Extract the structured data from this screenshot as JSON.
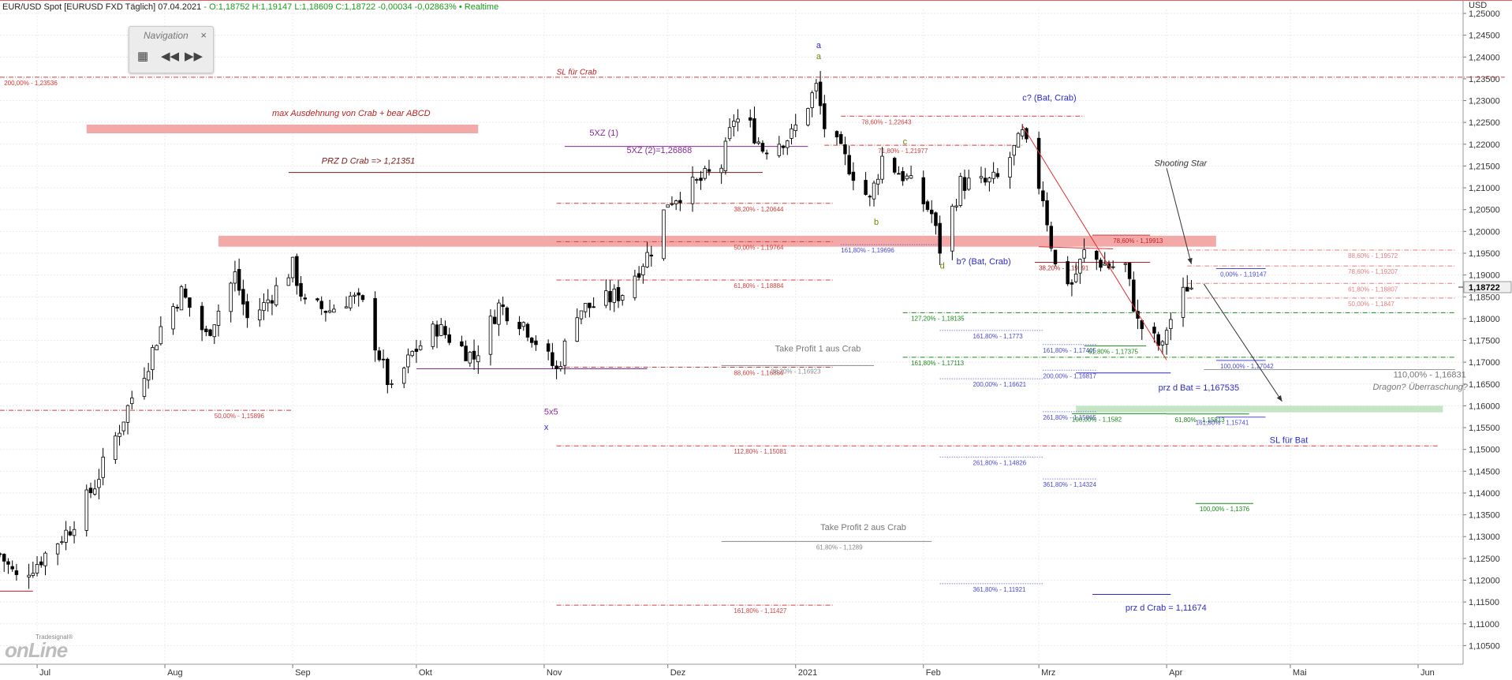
{
  "header": {
    "symbol": "EUR/USD Spot [EURUSD FXD Täglich] 07.04.2021",
    "ohlc": "- O:1,18752 H:1,19147 L:1,18609 C:1,18722 -0,00034 -0,02863% • Realtime"
  },
  "navigation": {
    "title": "Navigation",
    "close_glyph": "×",
    "grid_glyph": "▦",
    "back_glyph": "◀◀",
    "forward_glyph": "▶▶"
  },
  "logo": {
    "small": "Tradesignal®",
    "big": "onLine"
  },
  "currency_label": "USD",
  "current_price_label": "1,18722",
  "colors": {
    "up": "#ffffff",
    "down": "#000000",
    "red": "#e02020",
    "blue": "#2a2ad0",
    "green": "#1a8a1a",
    "purple": "#8a2a9a",
    "gray": "#777777",
    "band_red": "#f3a0a0",
    "band_green": "#bfe3bf"
  },
  "chart_data": {
    "type": "candlestick",
    "ylim": [
      1.102,
      1.25
    ],
    "xlim": [
      "2021-06-22",
      "2021-06-10"
    ],
    "y_axis_side": "right",
    "grid": true,
    "y_ticks": [
      "1,25000",
      "1,24500",
      "1,24000",
      "1,23500",
      "1,23000",
      "1,22500",
      "1,22000",
      "1,21500",
      "1,21000",
      "1,20500",
      "1,20000",
      "1,19500",
      "1,19000",
      "1,18500",
      "1,18000",
      "1,17500",
      "1,17000",
      "1,16500",
      "1,16000",
      "1,15500",
      "1,15000",
      "1,14500",
      "1,14000",
      "1,13500",
      "1,13000",
      "1,12500",
      "1,12000",
      "1,11500",
      "1,11000",
      "1,10500"
    ],
    "y_tick_values": [
      1.25,
      1.245,
      1.24,
      1.235,
      1.23,
      1.225,
      1.22,
      1.215,
      1.21,
      1.205,
      1.2,
      1.195,
      1.19,
      1.185,
      1.18,
      1.175,
      1.17,
      1.165,
      1.16,
      1.155,
      1.15,
      1.145,
      1.14,
      1.135,
      1.13,
      1.125,
      1.12,
      1.115,
      1.11,
      1.105
    ],
    "x_ticks": [
      {
        "label": "Jul",
        "date": "2020-07-01"
      },
      {
        "label": "Aug",
        "date": "2020-08-01"
      },
      {
        "label": "Sep",
        "date": "2020-09-01"
      },
      {
        "label": "Okt",
        "date": "2020-10-01"
      },
      {
        "label": "Nov",
        "date": "2020-11-01"
      },
      {
        "label": "Dez",
        "date": "2020-12-01"
      },
      {
        "label": "2021",
        "date": "2021-01-01"
      },
      {
        "label": "Feb",
        "date": "2021-02-01"
      },
      {
        "label": "Mrz",
        "date": "2021-03-01"
      },
      {
        "label": "Apr",
        "date": "2021-04-01"
      },
      {
        "label": "Mai",
        "date": "2021-05-01"
      },
      {
        "label": "Jun",
        "date": "2021-06-01"
      }
    ],
    "anchors": [
      [
        "2020-06-22",
        1.126
      ],
      [
        "2020-06-26",
        1.1205
      ],
      [
        "2020-07-01",
        1.124
      ],
      [
        "2020-07-09",
        1.132
      ],
      [
        "2020-07-15",
        1.142
      ],
      [
        "2020-07-21",
        1.155
      ],
      [
        "2020-07-24",
        1.162
      ],
      [
        "2020-07-28",
        1.17
      ],
      [
        "2020-07-31",
        1.178
      ],
      [
        "2020-08-05",
        1.186
      ],
      [
        "2020-08-11",
        1.176
      ],
      [
        "2020-08-18",
        1.19
      ],
      [
        "2020-08-21",
        1.18
      ],
      [
        "2020-08-25",
        1.183
      ],
      [
        "2020-09-01",
        1.192
      ],
      [
        "2020-09-04",
        1.183
      ],
      [
        "2020-09-10",
        1.182
      ],
      [
        "2020-09-15",
        1.185
      ],
      [
        "2020-09-18",
        1.183
      ],
      [
        "2020-09-25",
        1.163
      ],
      [
        "2020-09-30",
        1.172
      ],
      [
        "2020-10-06",
        1.178
      ],
      [
        "2020-10-15",
        1.171
      ],
      [
        "2020-10-21",
        1.183
      ],
      [
        "2020-10-27",
        1.179
      ],
      [
        "2020-11-04",
        1.168
      ],
      [
        "2020-11-09",
        1.182
      ],
      [
        "2020-11-13",
        1.183
      ],
      [
        "2020-11-20",
        1.186
      ],
      [
        "2020-11-27",
        1.196
      ],
      [
        "2020-12-01",
        1.207
      ],
      [
        "2020-12-08",
        1.211
      ],
      [
        "2020-12-14",
        1.215
      ],
      [
        "2020-12-17",
        1.226
      ],
      [
        "2020-12-21",
        1.224
      ],
      [
        "2020-12-24",
        1.219
      ],
      [
        "2020-12-31",
        1.222
      ],
      [
        "2021-01-06",
        1.233
      ],
      [
        "2021-01-08",
        1.224
      ],
      [
        "2021-01-14",
        1.215
      ],
      [
        "2021-01-19",
        1.207
      ],
      [
        "2021-01-22",
        1.217
      ],
      [
        "2021-01-28",
        1.212
      ],
      [
        "2021-02-03",
        1.204
      ],
      [
        "2021-02-05",
        1.196
      ],
      [
        "2021-02-10",
        1.211
      ],
      [
        "2021-02-16",
        1.211
      ],
      [
        "2021-02-19",
        1.212
      ],
      [
        "2021-02-25",
        1.222
      ],
      [
        "2021-03-02",
        1.208
      ],
      [
        "2021-03-05",
        1.192
      ],
      [
        "2021-03-09",
        1.188
      ],
      [
        "2021-03-12",
        1.195
      ],
      [
        "2021-03-18",
        1.192
      ],
      [
        "2021-03-22",
        1.192
      ],
      [
        "2021-03-25",
        1.179
      ],
      [
        "2021-03-31",
        1.173
      ],
      [
        "2021-04-01",
        1.178
      ],
      [
        "2021-04-06",
        1.1875
      ],
      [
        "2021-04-07",
        1.1872
      ]
    ],
    "levels": [
      {
        "label": "200,00% - 1,23536",
        "price": 1.23536,
        "x1": "2020-06-22",
        "x2": "2021-06-22",
        "color": "#d04040",
        "style": "dashdot",
        "label_at": "2020-06-23",
        "label_color": "#e03030"
      },
      {
        "label": "",
        "price": 1.23536,
        "x1": "2020-06-22",
        "x2": "2021-06-22",
        "color": "#d04040",
        "style": "none",
        "label_at": "2020-06-23"
      },
      {
        "label": "SL für Crab",
        "price": 1.2365,
        "color": "#c02020",
        "style": "text",
        "label_at": "2020-11-04"
      },
      {
        "label": "78,60% - 1,22643",
        "price": 1.22643,
        "x1": "2021-01-12",
        "x2": "2021-03-12",
        "color": "#d04040",
        "style": "dashdot",
        "label_at": "2021-01-17"
      },
      {
        "label": "71,80% - 1,21977",
        "price": 1.21977,
        "x1": "2021-01-08",
        "x2": "2021-02-25",
        "color": "#d04040",
        "style": "dashdot",
        "label_at": "2021-01-21"
      },
      {
        "label": "38,20% - 1,20644",
        "price": 1.20644,
        "x1": "2020-11-04",
        "x2": "2021-01-10",
        "color": "#d04040",
        "style": "dashdot",
        "label_at": "2020-12-17"
      },
      {
        "label": "50,00% - 1,19764",
        "price": 1.19764,
        "x1": "2020-11-04",
        "x2": "2021-01-10",
        "color": "#d04040",
        "style": "dashdot",
        "label_at": "2020-12-17"
      },
      {
        "label": "61,80% - 1,18884",
        "price": 1.18884,
        "x1": "2020-11-04",
        "x2": "2021-01-10",
        "color": "#d04040",
        "style": "dashdot",
        "label_at": "2020-12-17"
      },
      {
        "label": "88,60% - 1,16886",
        "price": 1.16886,
        "x1": "2020-11-04",
        "x2": "2021-01-10",
        "color": "#d04040",
        "style": "dashdot",
        "label_at": "2020-12-17"
      },
      {
        "label": "112,80% - 1,15081",
        "price": 1.15081,
        "x1": "2020-11-04",
        "x2": "2021-06-06",
        "color": "#d04040",
        "style": "dashdot",
        "label_at": "2020-12-17"
      },
      {
        "label": "161,80% - 1,11427",
        "price": 1.11427,
        "x1": "2020-11-04",
        "x2": "2021-01-10",
        "color": "#d04040",
        "style": "dashdot",
        "label_at": "2020-12-17"
      },
      {
        "label": "50,00% - 1,15896",
        "price": 1.15896,
        "x1": "2020-06-22",
        "x2": "2020-09-01",
        "color": "#d04040",
        "style": "dashdot",
        "label_at": "2020-08-13"
      },
      {
        "label": "161,80% - 1,19696",
        "price": 1.19696,
        "x1": "2021-01-12",
        "x2": "2021-02-05",
        "color": "#4a4ad0",
        "style": "dotted",
        "label_at": "2021-01-12"
      },
      {
        "label": "127,20% - 1,18135",
        "price": 1.18135,
        "x1": "2021-01-27",
        "x2": "2021-06-10",
        "color": "#1a8a1a",
        "style": "dashdot",
        "label_at": "2021-01-29"
      },
      {
        "label": "161,80% - 1,17113",
        "price": 1.17113,
        "x1": "2021-01-27",
        "x2": "2021-06-10",
        "color": "#1a8a1a",
        "style": "dashdot",
        "label_at": "2021-01-29"
      },
      {
        "label": "161,80% - 1,1773",
        "price": 1.1773,
        "x1": "2021-02-05",
        "x2": "2021-03-02",
        "color": "#4a4ad0",
        "style": "dotted",
        "label_at": "2021-02-13"
      },
      {
        "label": "200,00% - 1,16621",
        "price": 1.16621,
        "x1": "2021-02-05",
        "x2": "2021-03-02",
        "color": "#4a4ad0",
        "style": "dotted",
        "label_at": "2021-02-13"
      },
      {
        "label": "261,80% - 1,14826",
        "price": 1.14826,
        "x1": "2021-02-05",
        "x2": "2021-03-02",
        "color": "#4a4ad0",
        "style": "dotted",
        "label_at": "2021-02-13"
      },
      {
        "label": "361,80% - 1,11921",
        "price": 1.11921,
        "x1": "2021-02-05",
        "x2": "2021-03-02",
        "color": "#4a4ad0",
        "style": "dotted",
        "label_at": "2021-02-13"
      },
      {
        "label": "161,80% - 1,17405",
        "price": 1.17405,
        "x1": "2021-03-02",
        "x2": "2021-03-15",
        "color": "#4a4ad0",
        "style": "dotted",
        "label_at": "2021-03-02"
      },
      {
        "label": "200,00% - 1,16817",
        "price": 1.16817,
        "x1": "2021-03-02",
        "x2": "2021-03-15",
        "color": "#4a4ad0",
        "style": "dotted",
        "label_at": "2021-03-02"
      },
      {
        "label": "261,80% - 1,15865",
        "price": 1.15865,
        "x1": "2021-03-02",
        "x2": "2021-03-15",
        "color": "#4a4ad0",
        "style": "dotted",
        "label_at": "2021-03-02"
      },
      {
        "label": "361,80% - 1,14324",
        "price": 1.14324,
        "x1": "2021-03-02",
        "x2": "2021-03-15",
        "color": "#4a4ad0",
        "style": "dotted",
        "label_at": "2021-03-02"
      },
      {
        "label": "61,80% - 1,17375",
        "price": 1.17375,
        "x1": "2021-03-12",
        "x2": "2021-03-27",
        "color": "#1a8a1a",
        "style": "solid",
        "label_at": "2021-03-13"
      },
      {
        "label": "100,00% - 1,1582",
        "price": 1.1582,
        "x1": "2021-03-09",
        "x2": "2021-04-01",
        "color": "#1a8a1a",
        "style": "solid",
        "label_at": "2021-03-09"
      },
      {
        "label": "61,80% - 1,15813",
        "price": 1.15813,
        "x1": "2021-04-01",
        "x2": "2021-04-21",
        "color": "#1a8a1a",
        "style": "solid",
        "label_at": "2021-04-03"
      },
      {
        "label": "100,00% - 1,1376",
        "price": 1.1376,
        "x1": "2021-04-08",
        "x2": "2021-04-22",
        "color": "#1a8a1a",
        "style": "solid",
        "label_at": "2021-04-09"
      },
      {
        "label": "0,00% - 1,19147",
        "price": 1.19147,
        "x1": "2021-04-13",
        "x2": "2021-04-25",
        "color": "#4a4ad0",
        "style": "solid",
        "label_at": "2021-04-14"
      },
      {
        "label": "100,00% - 1,17042",
        "price": 1.17042,
        "x1": "2021-04-13",
        "x2": "2021-04-25",
        "color": "#4a4ad0",
        "style": "solid",
        "label_at": "2021-04-14"
      },
      {
        "label": "161,80% - 1,15741",
        "price": 1.15741,
        "x1": "2021-04-13",
        "x2": "2021-04-25",
        "color": "#4a4ad0",
        "style": "solid",
        "label_at": "2021-04-08"
      },
      {
        "label": "38,20% - 1,19291",
        "price": 1.19291,
        "x1": "2021-02-28",
        "x2": "2021-03-28",
        "color": "#c02020",
        "style": "solid",
        "label_at": "2021-03-01"
      },
      {
        "label": "78,60% - 1,19913",
        "price": 1.19913,
        "x1": "2021-03-14",
        "x2": "2021-03-28",
        "color": "#c02020",
        "style": "solid",
        "label_at": "2021-03-19"
      },
      {
        "label": "88,60% - 1,19572",
        "price": 1.19572,
        "x1": "2021-04-06",
        "x2": "2021-06-10",
        "color": "#e08080",
        "style": "dashdot",
        "label_at": "2021-05-15"
      },
      {
        "label": "78,60% - 1,19207",
        "price": 1.19207,
        "x1": "2021-04-06",
        "x2": "2021-06-10",
        "color": "#e08080",
        "style": "dashdot",
        "label_at": "2021-05-15"
      },
      {
        "label": "61,80% - 1,18807",
        "price": 1.18807,
        "x1": "2021-04-06",
        "x2": "2021-06-10",
        "color": "#e08080",
        "style": "dashdot",
        "label_at": "2021-05-15"
      },
      {
        "label": "50,00% - 1,1847",
        "price": 1.1847,
        "x1": "2021-04-06",
        "x2": "2021-06-10",
        "color": "#e08080",
        "style": "dashdot",
        "label_at": "2021-05-15"
      },
      {
        "label": "38,20% - 1,16923",
        "price": 1.16923,
        "x1": "2020-12-14",
        "x2": "2021-01-20",
        "color": "#888888",
        "style": "solid",
        "label_at": "2020-12-26"
      },
      {
        "label": "61,80% - 1,1289",
        "price": 1.1289,
        "x1": "2020-12-14",
        "x2": "2021-02-03",
        "color": "#888888",
        "style": "solid",
        "label_at": "2021-01-06"
      }
    ],
    "solid_lines": [
      {
        "price": 1.21351,
        "x1": "2020-08-31",
        "x2": "2020-12-24",
        "color": "#7a1a1a"
      },
      {
        "price": 1.2195,
        "x1": "2020-11-06",
        "x2": "2021-01-04",
        "color": "#8a2a9a"
      },
      {
        "price": 1.1685,
        "x1": "2020-10-01",
        "x2": "2020-11-26",
        "color": "#8a2a9a"
      },
      {
        "price": 1.167535,
        "x1": "2021-03-10",
        "x2": "2021-04-02",
        "color": "#2a2ad0"
      },
      {
        "price": 1.11674,
        "x1": "2021-03-14",
        "x2": "2021-04-02",
        "color": "#2a2ad0"
      },
      {
        "price": 1.1683,
        "x1": "2021-04-10",
        "x2": "2021-06-10",
        "color": "#999999"
      },
      {
        "price": 1.1175,
        "x1": "2020-06-22",
        "x2": "2020-06-30",
        "color": "#c02020"
      }
    ],
    "bands": [
      {
        "x1": "2020-07-13",
        "x2": "2020-10-16",
        "y1": 1.2245,
        "y2": 1.2225,
        "color": "#f3a0a0"
      },
      {
        "x1": "2020-08-14",
        "x2": "2021-04-13",
        "y1": 1.199,
        "y2": 1.1965,
        "color": "#f3a0a0"
      },
      {
        "x1": "2021-03-10",
        "x2": "2021-06-07",
        "y1": 1.16,
        "y2": 1.1585,
        "color": "#bfe3bf"
      }
    ],
    "trendlines": [
      {
        "x1": "2021-02-25",
        "y1": 1.2243,
        "x2": "2021-04-01",
        "y2": 1.1705,
        "color": "#e03030"
      },
      {
        "x1": "2021-03-01",
        "y1": 1.1965,
        "x2": "2021-03-19",
        "y2": 1.196,
        "color": "#e03030"
      }
    ],
    "arrows": [
      {
        "x1": "2021-04-01",
        "y1": 1.2145,
        "x2": "2021-04-07",
        "y2": 1.1925,
        "color": "#333333"
      },
      {
        "x1": "2021-04-10",
        "y1": 1.188,
        "x2": "2021-04-29",
        "y2": 1.161,
        "color": "#333333"
      }
    ],
    "annotations": [
      {
        "text": "max Ausdehnung von Crab + bear ABCD",
        "x": "2020-08-27",
        "y": 1.2265,
        "color": "#c02020",
        "italic": true
      },
      {
        "text": "PRZ D Crab => 1,21351",
        "x": "2020-09-08",
        "y": 1.2155,
        "color": "#7a1a1a",
        "italic": true
      },
      {
        "text": "5XZ (1)",
        "x": "2020-11-12",
        "y": 1.222,
        "color": "#8a2a9a",
        "italic": false
      },
      {
        "text": "5XZ (2)=1,26868",
        "x": "2020-11-21",
        "y": 1.218,
        "color": "#8a2a9a",
        "italic": false
      },
      {
        "text": "Take Profit 1 aus Crab",
        "x": "2020-12-27",
        "y": 1.1725,
        "color": "#777777",
        "italic": false
      },
      {
        "text": "Take Profit 2 aus Crab",
        "x": "2021-01-07",
        "y": 1.1315,
        "color": "#777777",
        "italic": false
      },
      {
        "text": "a",
        "x": "2021-01-06",
        "y": 1.242,
        "color": "#2a2ad0",
        "italic": false
      },
      {
        "text": "a",
        "x": "2021-01-06",
        "y": 1.2395,
        "color": "#6a8a00",
        "italic": false
      },
      {
        "text": "b",
        "x": "2021-01-20",
        "y": 1.2015,
        "color": "#6a8a00",
        "italic": false
      },
      {
        "text": "c",
        "x": "2021-01-27",
        "y": 1.22,
        "color": "#6a8a00",
        "italic": false
      },
      {
        "text": "c? (Bat, Crab)",
        "x": "2021-02-25",
        "y": 1.23,
        "color": "#2a2ad0",
        "italic": false
      },
      {
        "text": "d",
        "x": "2021-02-05",
        "y": 1.1915,
        "color": "#6a8a00",
        "italic": false
      },
      {
        "text": "b? (Bat, Crab)",
        "x": "2021-02-09",
        "y": 1.1925,
        "color": "#2a2ad0",
        "italic": false
      },
      {
        "text": "5x5",
        "x": "2020-11-01",
        "y": 1.158,
        "color": "#8a2a9a",
        "italic": false
      },
      {
        "text": "x",
        "x": "2020-11-01",
        "y": 1.1545,
        "color": "#2a2ad0",
        "italic": false
      },
      {
        "text": "Shooting Star",
        "x": "2021-03-29",
        "y": 1.215,
        "color": "#333333",
        "italic": true
      },
      {
        "text": "prz d Bat = 1,167535",
        "x": "2021-03-30",
        "y": 1.1635,
        "color": "#2a2ad0",
        "italic": false
      },
      {
        "text": "prz d Crab = 1,11674",
        "x": "2021-03-22",
        "y": 1.113,
        "color": "#2a2ad0",
        "italic": false
      },
      {
        "text": "SL für Bat",
        "x": "2021-04-26",
        "y": 1.1515,
        "color": "#2a2ad0",
        "italic": false
      },
      {
        "text": "110,00% - 1,16831",
        "x": "2021-05-26",
        "y": 1.1665,
        "color": "#777777",
        "italic": false
      },
      {
        "text": "Dragon? Überraschung?",
        "x": "2021-05-21",
        "y": 1.1637,
        "color": "#777777",
        "italic": true
      }
    ]
  }
}
